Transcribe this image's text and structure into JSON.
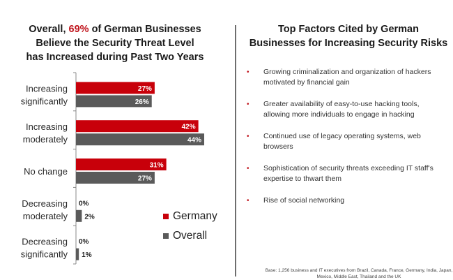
{
  "left_panel": {
    "title_prefix": "Overall, ",
    "title_highlight": "69%",
    "title_line1_suffix": " of German Businesses",
    "title_line2": "Believe the Security Threat Level",
    "title_line3": "has Increased during Past Two Years"
  },
  "right_panel": {
    "title_line1": "Top Factors Cited by German",
    "title_line2": "Businesses for Increasing Security Risks",
    "bullet_glyph": "•",
    "bullets": [
      {
        "text": "Growing criminalization and organization of hackers motivated by financial gain"
      },
      {
        "text": "Greater availability of easy-to-use hacking tools, allowing more individuals to engage in hacking"
      },
      {
        "text": "Continued use of legacy operating systems, web browsers"
      },
      {
        "text": "Sophistication of security threats exceeding IT staff's expertise to thwart them"
      },
      {
        "text": "Rise of social networking"
      }
    ],
    "base_note": "Base: 1,256 business and IT executives from Brazil, Canada, France, Germany, India, Japan, Mexico, Middle East, Thailand and the UK"
  },
  "colors": {
    "germany": "#c8000a",
    "overall": "#5a5a5a",
    "highlight": "#c0141c"
  },
  "chart_data": {
    "type": "bar",
    "orientation": "horizontal",
    "title": "Overall, 69% of German Businesses Believe the Security Threat Level has Increased during Past Two Years",
    "categories": [
      [
        "Increasing",
        "significantly"
      ],
      [
        "Increasing",
        "moderately"
      ],
      [
        "No change"
      ],
      [
        "Decreasing",
        "moderately"
      ],
      [
        "Decreasing",
        "significantly"
      ]
    ],
    "series": [
      {
        "name": "Germany",
        "color": "#c8000a",
        "values": [
          27,
          42,
          31,
          0,
          0
        ],
        "labels": [
          "27%",
          "42%",
          "31%",
          "0%",
          "0%"
        ]
      },
      {
        "name": "Overall",
        "color": "#5a5a5a",
        "values": [
          26,
          44,
          27,
          2,
          1
        ],
        "labels": [
          "26%",
          "44%",
          "27%",
          "2%",
          "1%"
        ]
      }
    ],
    "unit": "%",
    "xlim": [
      0,
      46
    ],
    "grid": false,
    "legend": "bottom-right"
  }
}
